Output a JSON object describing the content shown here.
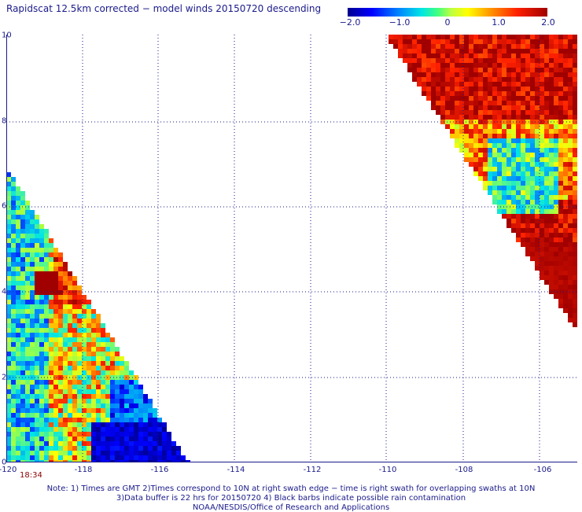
{
  "title": "Rapidscat 12.5km corrected − model winds 20150720 descending",
  "colorbar": {
    "labels": [
      "−2.0",
      "−1.0",
      "0",
      "1.0",
      "2.0"
    ],
    "min": -2.0,
    "max": 2.0
  },
  "map": {
    "lon_range": [
      -120,
      -105
    ],
    "lat_range": [
      0,
      10
    ],
    "y_ticks": [
      "0",
      "2",
      "4",
      "6",
      "8",
      "10"
    ],
    "x_ticks": [
      "-120",
      "-118",
      "-116",
      "-114",
      "-112",
      "-110",
      "-108",
      "-106"
    ],
    "grid": "dotted",
    "swaths": [
      "lower-left triangle",
      "upper-right triangle"
    ]
  },
  "time_label": "18:34",
  "notes": [
    "Note: 1) Times are GMT 2)Times correspond to 10N at right swath edge − time is right swath for overlapping swaths at 10N",
    "3)Data buffer is 22 hrs for 20150720 4) Black barbs indicate possible rain contamination",
    "NOAA/NESDIS/Office of Research and Applications"
  ]
}
